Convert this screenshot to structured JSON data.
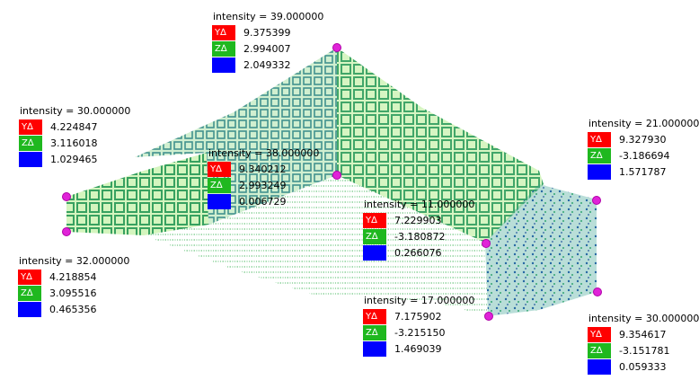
{
  "pick_labels": [
    {
      "id": "p1",
      "intensity": "intensity = 39.000000",
      "y": "9.375399",
      "z": "2.994007",
      "b": "2.049332"
    },
    {
      "id": "p2",
      "intensity": "intensity = 30.000000",
      "y": "4.224847",
      "z": "3.116018",
      "b": "1.029465"
    },
    {
      "id": "p3",
      "intensity": "intensity = 38.000000",
      "y": "9.340212",
      "z": "2.993249",
      "b": "0.006729"
    },
    {
      "id": "p4",
      "intensity": "intensity = 21.000000",
      "y": "9.327930",
      "z": "-3.186694",
      "b": "1.571787"
    },
    {
      "id": "p5",
      "intensity": "intensity = 11.000000",
      "y": "7.229903",
      "z": "-3.180872",
      "b": "0.266076"
    },
    {
      "id": "p6",
      "intensity": "intensity = 32.000000",
      "y": "4.218854",
      "z": "3.095516",
      "b": "0.465356"
    },
    {
      "id": "p7",
      "intensity": "intensity = 17.000000",
      "y": "7.175902",
      "z": "-3.215150",
      "b": "1.469039"
    },
    {
      "id": "p8",
      "intensity": "intensity = 30.000000",
      "y": "9.354617",
      "z": "-3.151781",
      "b": "0.059333"
    }
  ],
  "axis_labels": {
    "y": "Y∆",
    "z": "Z∆"
  },
  "colors": {
    "y_axis": "#ff0000",
    "z_axis": "#1fb81f",
    "b_axis": "#0000ff",
    "marker": "#e023d8",
    "cloud_light": "#7ce23a",
    "cloud_mid": "#2fae5a",
    "cloud_dark": "#1a6b9a"
  }
}
